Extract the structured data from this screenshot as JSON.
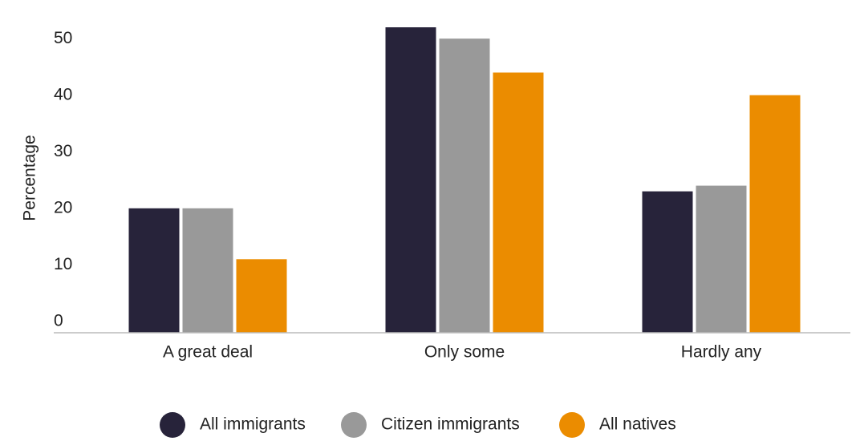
{
  "chart_data": {
    "type": "bar",
    "y_label": "Percentage",
    "categories": [
      "A great deal",
      "Only some",
      "Hardly any"
    ],
    "series": [
      {
        "name": "All immigrants",
        "color": "#27233a",
        "values": [
          22,
          54,
          25
        ]
      },
      {
        "name": "Citizen immigrants",
        "color": "#999999",
        "values": [
          22,
          52,
          26
        ]
      },
      {
        "name": "All natives",
        "color": "#eb8c00",
        "values": [
          13,
          46,
          42
        ]
      }
    ],
    "ylim": [
      0,
      55
    ],
    "yticks": [
      0,
      10,
      20,
      30,
      40,
      50
    ],
    "grid": false
  }
}
